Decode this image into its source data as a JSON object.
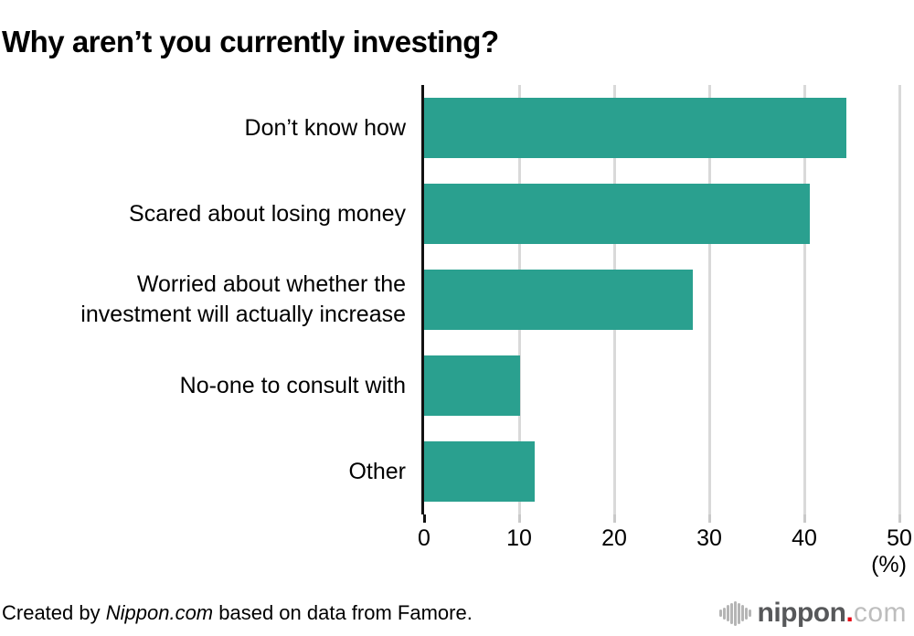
{
  "title": "Why aren’t you currently investing?",
  "chart_data": {
    "type": "bar",
    "orientation": "horizontal",
    "title": "Why aren’t you currently investing?",
    "categories": [
      "Don’t know how",
      "Scared about losing money",
      [
        "Worried about whether the",
        "investment will actually increase"
      ],
      "No-one to consult with",
      "Other"
    ],
    "values": [
      44.4,
      40.6,
      28.3,
      10.1,
      11.6
    ],
    "x_ticks": [
      0,
      10,
      20,
      30,
      40,
      50
    ],
    "xlim": [
      0,
      51.5
    ],
    "unit_label": "(%)",
    "grid": true,
    "legend": false,
    "bar_color": "#2aa08f",
    "gridline_color": "#d9d9d9",
    "axis_color": "#111111",
    "tick_color": "#c9c9c9"
  },
  "footer": {
    "created_prefix": "Created by ",
    "created_source": "Nippon.com",
    "created_suffix": " based on data from Famore.",
    "logo": {
      "name": "nippon",
      "dot": ".",
      "tld": "com"
    }
  }
}
